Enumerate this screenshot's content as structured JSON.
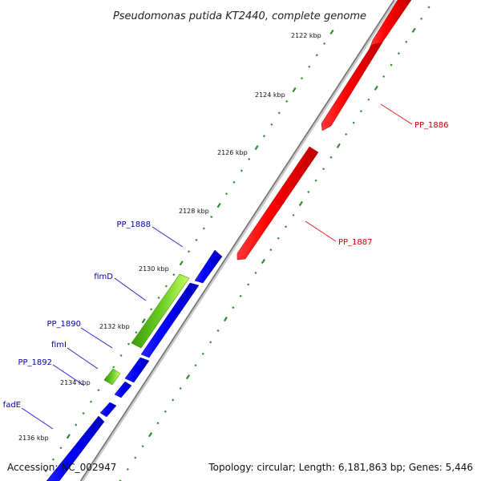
{
  "title": "Pseudomonas putida KT2440, complete genome",
  "colors": {
    "backbone": "#8a8a8a",
    "forward_gene": "#ee0000",
    "reverse_gene": "#0000ee",
    "feature_gene": "#44aa00",
    "tick": "#2e8b2e",
    "forward_label": "#cc0000",
    "reverse_label": "#0000aa"
  },
  "ticks": [
    {
      "label": "2122 kbp"
    },
    {
      "label": "2124 kbp"
    },
    {
      "label": "2126 kbp"
    },
    {
      "label": "2128 kbp"
    },
    {
      "label": "2130 kbp"
    },
    {
      "label": "2132 kbp"
    },
    {
      "label": "2134 kbp"
    },
    {
      "label": "2136 kbp"
    }
  ],
  "genes": [
    {
      "label": "PP_1886",
      "strand": "forward"
    },
    {
      "label": "PP_1887",
      "strand": "forward"
    },
    {
      "label": "PP_1888",
      "strand": "reverse"
    },
    {
      "label": "fimD",
      "strand": "reverse"
    },
    {
      "label": "PP_1890",
      "strand": "reverse"
    },
    {
      "label": "fimI",
      "strand": "reverse"
    },
    {
      "label": "PP_1892",
      "strand": "reverse"
    },
    {
      "label": "fadE",
      "strand": "reverse"
    }
  ],
  "footer": {
    "accession": "Accession: NC_002947",
    "summary": "Topology: circular; Length: 6,181,863 bp; Genes: 5,446"
  }
}
